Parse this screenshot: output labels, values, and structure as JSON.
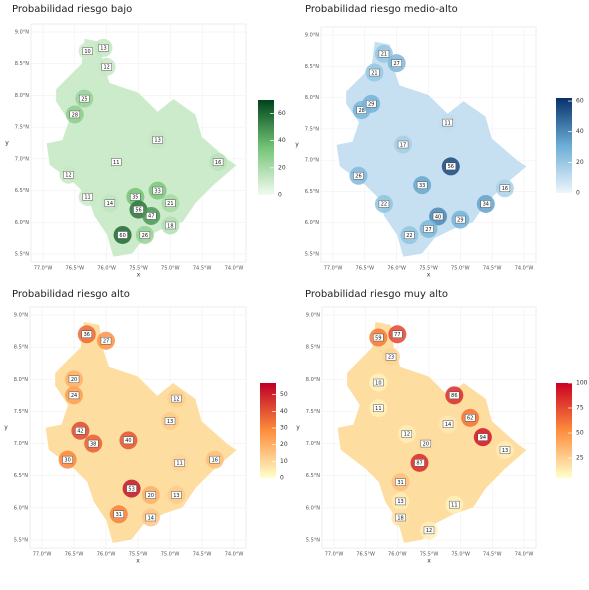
{
  "maps": [
    {
      "title": "Probabilidad riesgo bajo",
      "range": [
        0,
        70
      ],
      "colors": [
        "#f2fbef",
        "#74c476",
        "#00441b"
      ],
      "colorbar_ticks": [
        0,
        20,
        40,
        60
      ],
      "labels": [
        {
          "value": 10,
          "lon": -76.3,
          "lat": 8.7
        },
        {
          "value": 13,
          "lon": -76.05,
          "lat": 8.75
        },
        {
          "value": 12,
          "lon": -76.0,
          "lat": 8.45
        },
        {
          "value": 25,
          "lon": -76.35,
          "lat": 7.95
        },
        {
          "value": 28,
          "lon": -76.5,
          "lat": 7.7
        },
        {
          "value": 12,
          "lon": -76.6,
          "lat": 6.75
        },
        {
          "value": 11,
          "lon": -75.85,
          "lat": 6.95
        },
        {
          "value": 13,
          "lon": -75.2,
          "lat": 7.3
        },
        {
          "value": 16,
          "lon": -74.25,
          "lat": 6.95
        },
        {
          "value": 14,
          "lon": -75.95,
          "lat": 6.3
        },
        {
          "value": 11,
          "lon": -76.3,
          "lat": 6.4
        },
        {
          "value": 35,
          "lon": -75.55,
          "lat": 6.4
        },
        {
          "value": 56,
          "lon": -75.5,
          "lat": 6.2
        },
        {
          "value": 47,
          "lon": -75.3,
          "lat": 6.1
        },
        {
          "value": 33,
          "lon": -75.2,
          "lat": 6.5
        },
        {
          "value": 21,
          "lon": -75.0,
          "lat": 6.3
        },
        {
          "value": 18,
          "lon": -75.0,
          "lat": 5.95
        },
        {
          "value": 60,
          "lon": -75.75,
          "lat": 5.8
        },
        {
          "value": 26,
          "lon": -75.4,
          "lat": 5.8
        }
      ]
    },
    {
      "title": "Probabilidad riesgo medio-alto",
      "range": [
        0,
        62
      ],
      "colors": [
        "#eef5fc",
        "#6baed6",
        "#08306b"
      ],
      "colorbar_ticks": [
        0,
        20,
        40,
        60
      ],
      "labels": [
        {
          "value": 21,
          "lon": -76.2,
          "lat": 8.7
        },
        {
          "value": 21,
          "lon": -76.35,
          "lat": 8.4
        },
        {
          "value": 27,
          "lon": -76.0,
          "lat": 8.55
        },
        {
          "value": 28,
          "lon": -76.55,
          "lat": 7.8
        },
        {
          "value": 29,
          "lon": -76.4,
          "lat": 7.9
        },
        {
          "value": 11,
          "lon": -75.2,
          "lat": 7.6
        },
        {
          "value": 17,
          "lon": -75.9,
          "lat": 7.25
        },
        {
          "value": 26,
          "lon": -76.6,
          "lat": 6.75
        },
        {
          "value": 22,
          "lon": -76.2,
          "lat": 6.3
        },
        {
          "value": 33,
          "lon": -75.6,
          "lat": 6.6
        },
        {
          "value": 56,
          "lon": -75.15,
          "lat": 6.9
        },
        {
          "value": 34,
          "lon": -74.6,
          "lat": 6.3
        },
        {
          "value": 16,
          "lon": -74.3,
          "lat": 6.55
        },
        {
          "value": 40,
          "lon": -75.35,
          "lat": 6.1
        },
        {
          "value": 22,
          "lon": -75.8,
          "lat": 5.8
        },
        {
          "value": 27,
          "lon": -75.5,
          "lat": 5.9
        },
        {
          "value": 29,
          "lon": -75.0,
          "lat": 6.05
        }
      ]
    },
    {
      "title": "Probabilidad riesgo alto",
      "range": [
        0,
        57
      ],
      "colors": [
        "#ffffcc",
        "#fd8d3c",
        "#bd0026"
      ],
      "colorbar_ticks": [
        0,
        10,
        20,
        30,
        40,
        50
      ],
      "labels": [
        {
          "value": 36,
          "lon": -76.3,
          "lat": 8.7
        },
        {
          "value": 27,
          "lon": -76.0,
          "lat": 8.6
        },
        {
          "value": 20,
          "lon": -76.5,
          "lat": 8.0
        },
        {
          "value": 24,
          "lon": -76.5,
          "lat": 7.75
        },
        {
          "value": 12,
          "lon": -74.9,
          "lat": 7.7
        },
        {
          "value": 13,
          "lon": -75.0,
          "lat": 7.35
        },
        {
          "value": 42,
          "lon": -76.4,
          "lat": 7.2
        },
        {
          "value": 38,
          "lon": -76.2,
          "lat": 7.0
        },
        {
          "value": 30,
          "lon": -76.6,
          "lat": 6.75
        },
        {
          "value": 40,
          "lon": -75.65,
          "lat": 7.05
        },
        {
          "value": 11,
          "lon": -74.85,
          "lat": 6.7
        },
        {
          "value": 16,
          "lon": -74.3,
          "lat": 6.75
        },
        {
          "value": 53,
          "lon": -75.6,
          "lat": 6.3
        },
        {
          "value": 20,
          "lon": -75.3,
          "lat": 6.2
        },
        {
          "value": 13,
          "lon": -74.9,
          "lat": 6.2
        },
        {
          "value": 31,
          "lon": -75.8,
          "lat": 5.9
        },
        {
          "value": 14,
          "lon": -75.3,
          "lat": 5.85
        }
      ]
    },
    {
      "title": "Probabilidad riesgo muy alto",
      "range": [
        5,
        100
      ],
      "colors": [
        "#ffffcc",
        "#fd8d3c",
        "#cc0022"
      ],
      "colorbar_ticks": [
        25,
        50,
        75,
        100
      ],
      "labels": [
        {
          "value": 59,
          "lon": -76.3,
          "lat": 8.65
        },
        {
          "value": 77,
          "lon": -76.0,
          "lat": 8.7
        },
        {
          "value": 23,
          "lon": -76.1,
          "lat": 8.35
        },
        {
          "value": 10,
          "lon": -76.3,
          "lat": 7.95
        },
        {
          "value": 11,
          "lon": -76.3,
          "lat": 7.55
        },
        {
          "value": 12,
          "lon": -75.85,
          "lat": 7.15
        },
        {
          "value": 14,
          "lon": -75.2,
          "lat": 7.3
        },
        {
          "value": 20,
          "lon": -75.55,
          "lat": 7.0
        },
        {
          "value": 86,
          "lon": -75.1,
          "lat": 7.75
        },
        {
          "value": 62,
          "lon": -74.85,
          "lat": 7.4
        },
        {
          "value": 94,
          "lon": -74.65,
          "lat": 7.1
        },
        {
          "value": 13,
          "lon": -74.3,
          "lat": 6.9
        },
        {
          "value": 87,
          "lon": -75.65,
          "lat": 6.7
        },
        {
          "value": 31,
          "lon": -75.95,
          "lat": 6.4
        },
        {
          "value": 13,
          "lon": -75.95,
          "lat": 6.1
        },
        {
          "value": 18,
          "lon": -75.95,
          "lat": 5.85
        },
        {
          "value": 12,
          "lon": -75.5,
          "lat": 5.65
        },
        {
          "value": 11,
          "lon": -75.1,
          "lat": 6.05
        }
      ]
    }
  ],
  "x_label": "x",
  "y_label": "y",
  "xticks": [
    {
      "value": -77,
      "label": "77.0°W"
    },
    {
      "value": -76.5,
      "label": "76.5°W"
    },
    {
      "value": -76,
      "label": "76.0°W"
    },
    {
      "value": -75.5,
      "label": "75.5°W"
    },
    {
      "value": -75,
      "label": "75.0°W"
    },
    {
      "value": -74.5,
      "label": "74.5°W"
    },
    {
      "value": -74,
      "label": "74.0°W"
    }
  ],
  "yticks": [
    {
      "value": 9,
      "label": "9.0°N"
    },
    {
      "value": 8.5,
      "label": "8.5°N"
    },
    {
      "value": 8,
      "label": "8.0°N"
    },
    {
      "value": 7.5,
      "label": "7.5°N"
    },
    {
      "value": 7,
      "label": "7.0°N"
    },
    {
      "value": 6.5,
      "label": "6.5°N"
    },
    {
      "value": 6,
      "label": "6.0°N"
    },
    {
      "value": 5.5,
      "label": "5.5°N"
    }
  ]
}
